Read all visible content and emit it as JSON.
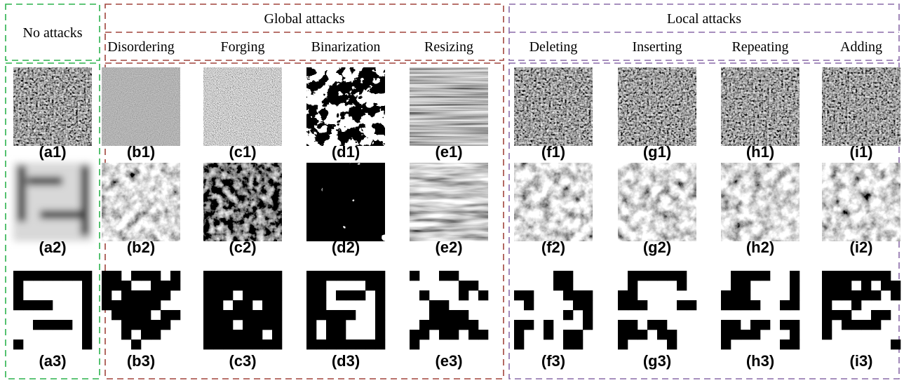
{
  "groups": [
    {
      "title": "No attacks"
    },
    {
      "title": "Global attacks",
      "columns": [
        "Disordering",
        "Forging",
        "Binarization",
        "Resizing"
      ]
    },
    {
      "title": "Local attacks",
      "columns": [
        "Deleting",
        "Inserting",
        "Repeating",
        "Adding"
      ]
    }
  ],
  "captions": [
    [
      "(a1)",
      "(b1)",
      "(c1)",
      "(d1)",
      "(e1)",
      "(f1)",
      "(g1)",
      "(h1)",
      "(i1)"
    ],
    [
      "(a2)",
      "(b2)",
      "(c2)",
      "(d2)",
      "(e2)",
      "(f2)",
      "(g2)",
      "(h2)",
      "(i2)"
    ],
    [
      "(a3)",
      "(b3)",
      "(c3)",
      "(d3)",
      "(e3)",
      "(f3)",
      "(g3)",
      "(h3)",
      "(i3)"
    ]
  ]
}
